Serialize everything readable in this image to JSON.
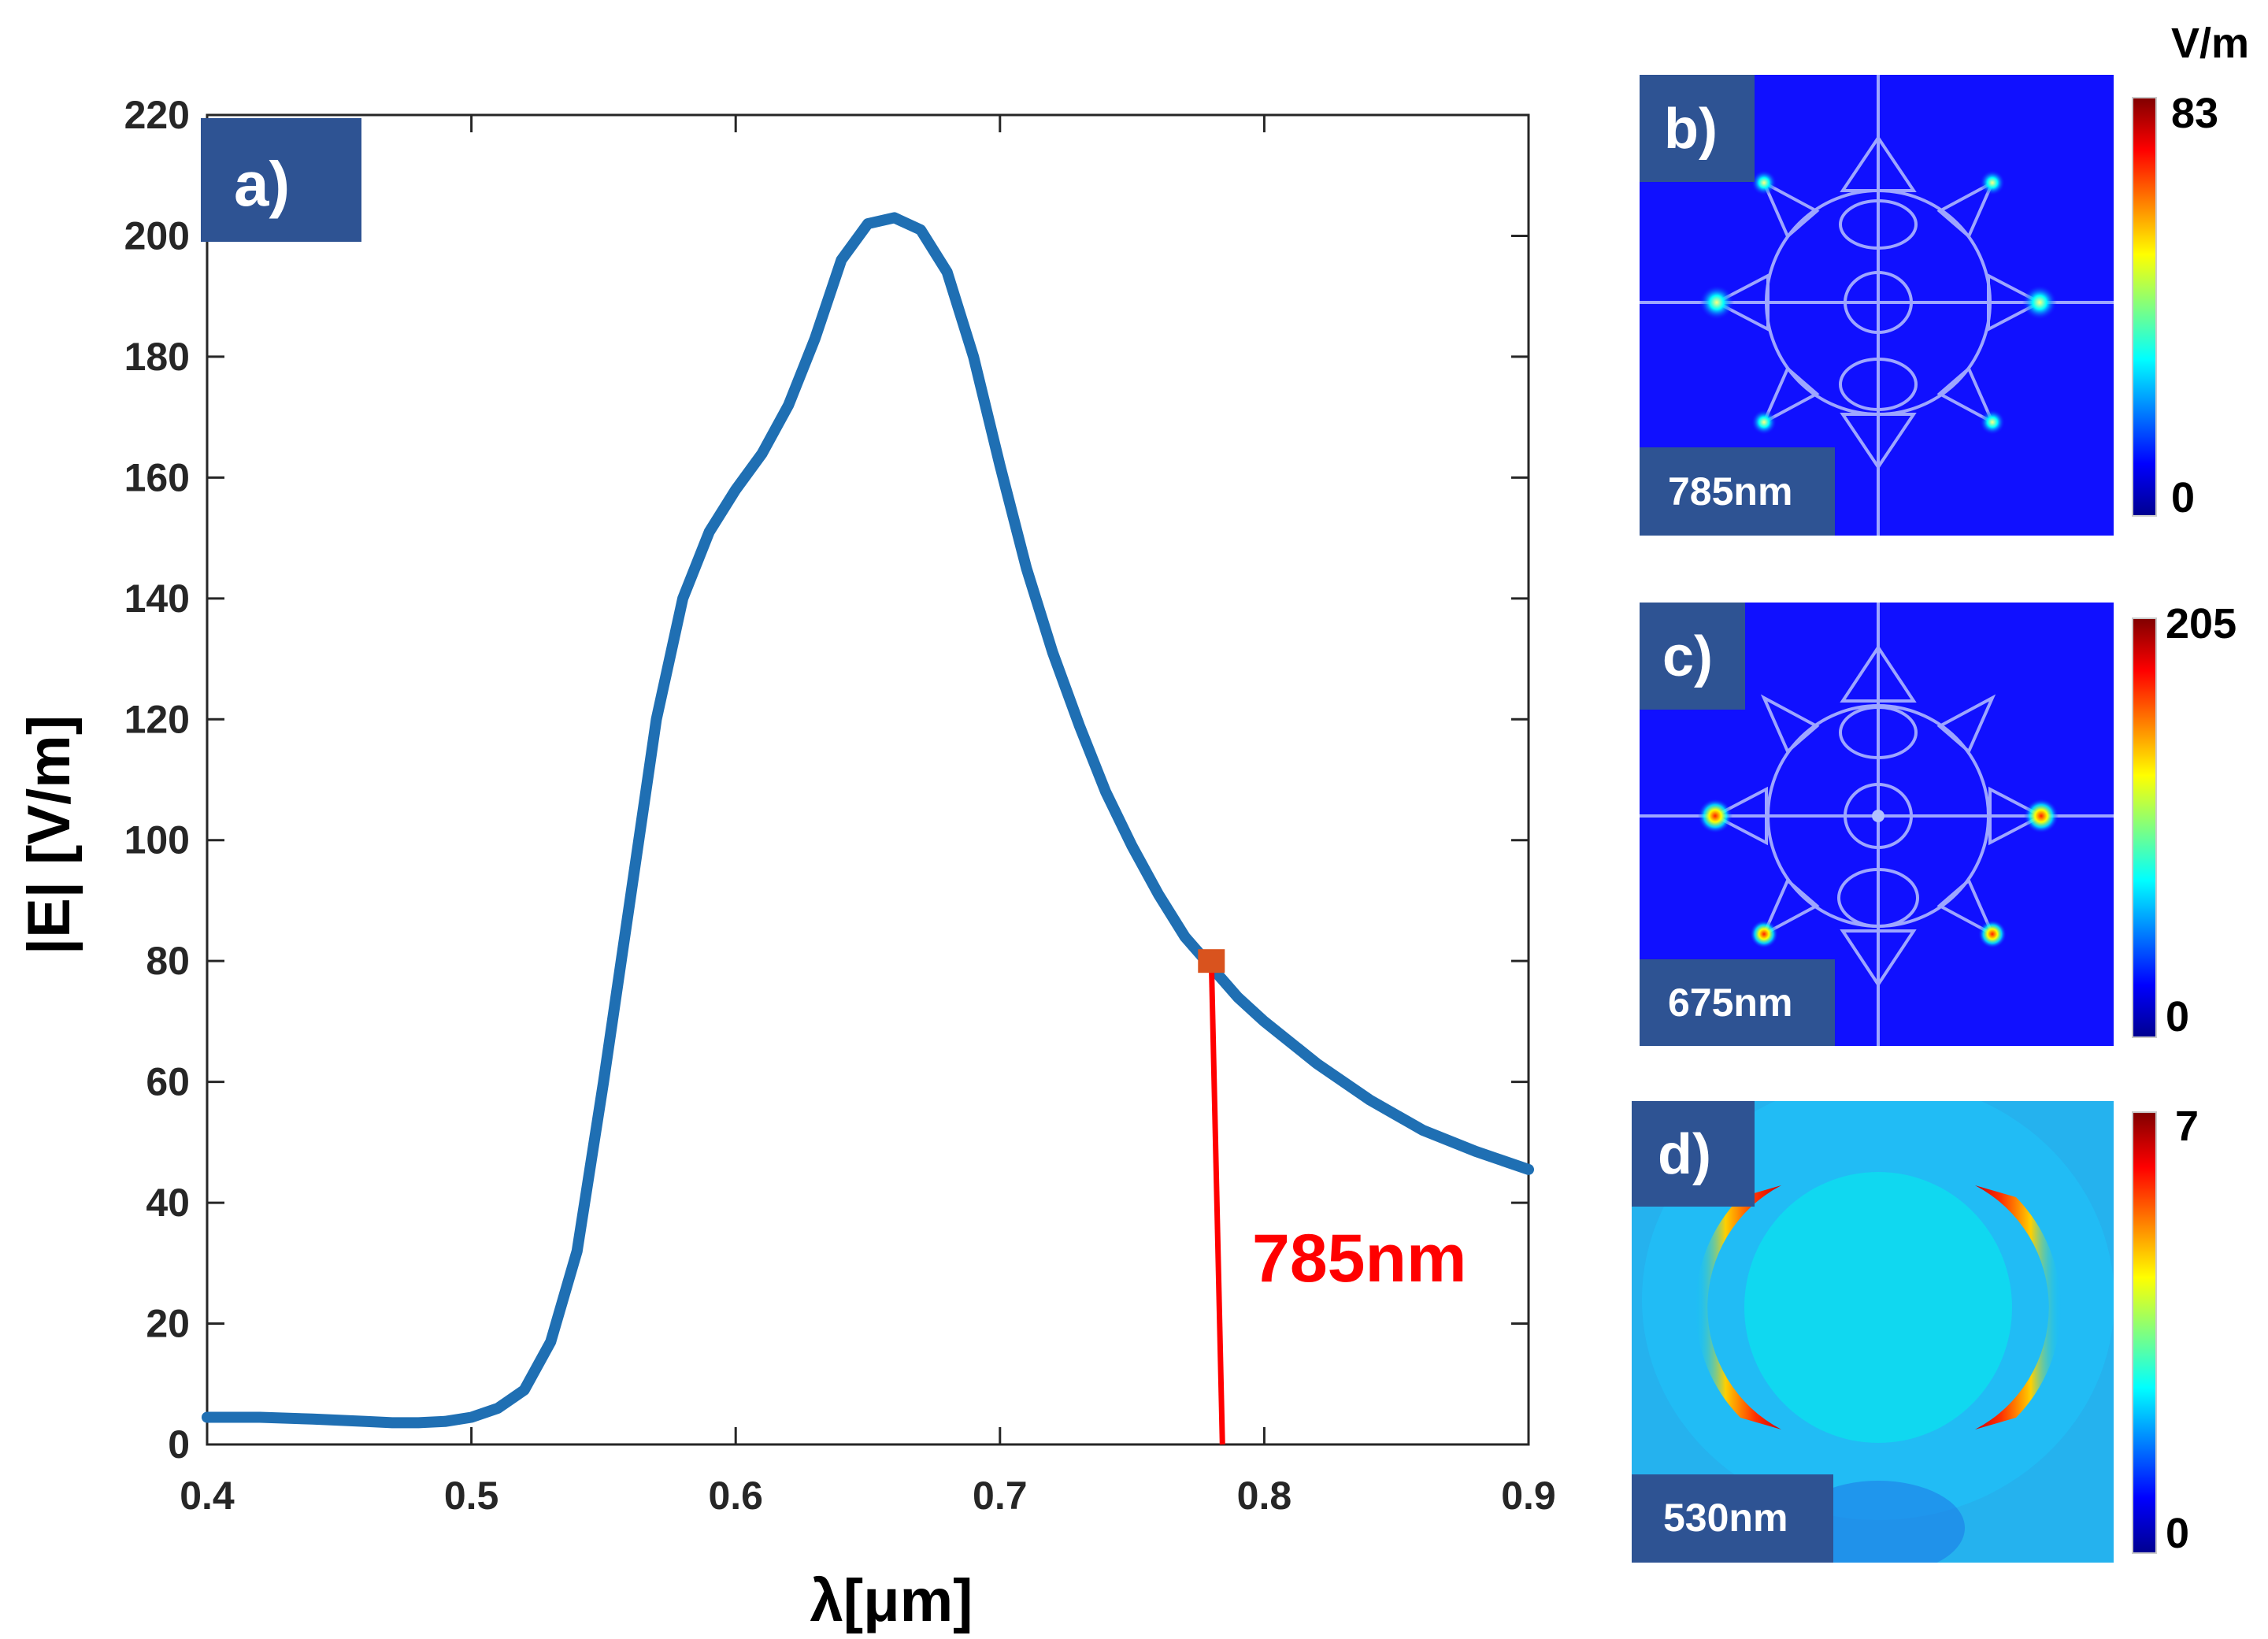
{
  "chart_data": [
    {
      "type": "line",
      "panel_label": "a)",
      "xlabel": "λ[μm]",
      "ylabel": "|E| [V/m]",
      "xlim": [
        0.4,
        0.9
      ],
      "ylim": [
        0,
        220
      ],
      "xticks": [
        0.4,
        0.5,
        0.6,
        0.7,
        0.8,
        0.9
      ],
      "xtick_labels": [
        "0.4",
        "0.5",
        "0.6",
        "0.7",
        "0.8",
        "0.9"
      ],
      "yticks": [
        0,
        20,
        40,
        60,
        80,
        100,
        120,
        140,
        160,
        180,
        200,
        220
      ],
      "ytick_labels": [
        "0",
        "20",
        "40",
        "60",
        "80",
        "100",
        "120",
        "140",
        "160",
        "180",
        "200",
        "220"
      ],
      "series": [
        {
          "name": "|E|",
          "color": "#1f6fb3",
          "x": [
            0.4,
            0.42,
            0.44,
            0.46,
            0.47,
            0.48,
            0.49,
            0.5,
            0.51,
            0.52,
            0.53,
            0.54,
            0.55,
            0.56,
            0.57,
            0.58,
            0.59,
            0.6,
            0.61,
            0.62,
            0.63,
            0.64,
            0.65,
            0.66,
            0.67,
            0.68,
            0.69,
            0.7,
            0.71,
            0.72,
            0.73,
            0.74,
            0.75,
            0.76,
            0.77,
            0.78,
            0.79,
            0.8,
            0.82,
            0.84,
            0.86,
            0.88,
            0.9
          ],
          "y": [
            4.5,
            4.5,
            4.2,
            3.8,
            3.6,
            3.6,
            3.8,
            4.5,
            6,
            9,
            17,
            32,
            60,
            90,
            120,
            140,
            151,
            158,
            164,
            172,
            183,
            196,
            202,
            203,
            201,
            194,
            180,
            162,
            145,
            131,
            119,
            108,
            99,
            91,
            84,
            79,
            74,
            70,
            63,
            57,
            52,
            48.5,
            45.5
          ]
        }
      ],
      "marker": {
        "x": 0.78,
        "y": 80,
        "color": "#d9531e"
      },
      "annotation": {
        "text": "785nm",
        "color": "#ff0000"
      }
    },
    {
      "type": "heatmap",
      "panel_label": "b)",
      "wavelength_label": "785nm",
      "colorbar_unit": "V/m",
      "colorbar_min": "0",
      "colorbar_max": "83"
    },
    {
      "type": "heatmap",
      "panel_label": "c)",
      "wavelength_label": "675nm",
      "colorbar_min": "0",
      "colorbar_max": "205"
    },
    {
      "type": "heatmap",
      "panel_label": "d)",
      "wavelength_label": "530nm",
      "colorbar_min": "0",
      "colorbar_max": "7"
    }
  ],
  "colors": {
    "tag_background": "#2e5393",
    "line": "#1f6fb3",
    "field_blue": "#1010ff",
    "annotation_red": "#ff0000"
  }
}
